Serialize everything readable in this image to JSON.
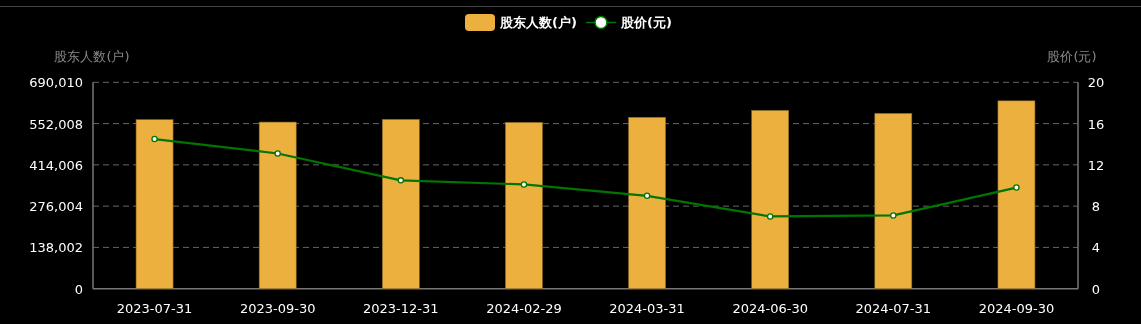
{
  "chart_data": {
    "type": "bar",
    "categories": [
      "2023-07-31",
      "2023-09-30",
      "2023-12-31",
      "2024-02-29",
      "2024-03-31",
      "2024-06-30",
      "2024-07-31",
      "2024-09-30"
    ],
    "series": [
      {
        "name": "股东人数(户)",
        "color": "#ecb03f",
        "values": [
          565000,
          557000,
          566000,
          556000,
          573000,
          596000,
          586000,
          628000
        ]
      },
      {
        "name": "股价(元)",
        "type": "line",
        "axis": "y2",
        "color": "#007500",
        "marker": "circle",
        "values": [
          14.5,
          13.1,
          10.5,
          10.1,
          9.0,
          7.0,
          7.1,
          9.8
        ]
      }
    ],
    "ylabel": "股东人数(户)",
    "y2label": "股价(元)",
    "ylim": [
      0,
      690010
    ],
    "yticks": [
      0,
      {
        "value": 138002,
        "label": "138,002"
      },
      {
        "value": 276004,
        "label": "276,004"
      },
      {
        "value": 414006,
        "label": "414,006"
      },
      {
        "value": 552008,
        "label": "552,008"
      },
      {
        "value": 690010,
        "label": "690,010"
      }
    ],
    "y2lim": [
      0,
      20
    ],
    "y2ticks": [
      0,
      4,
      8,
      12,
      16,
      20
    ],
    "grid": "y",
    "legend": "top"
  }
}
